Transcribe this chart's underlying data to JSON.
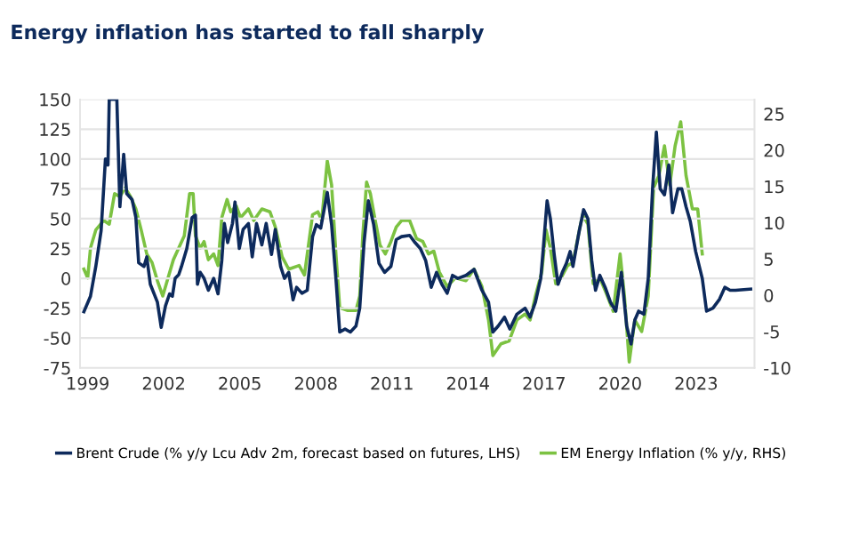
{
  "chart_data": {
    "type": "line",
    "title": "Energy inflation has started to fall sharply",
    "xlim": [
      1998.7,
      2025.3
    ],
    "xticks": [
      1999,
      2002,
      2005,
      2008,
      2011,
      2014,
      2017,
      2020,
      2023
    ],
    "ylim": [
      -75,
      150
    ],
    "yticks": [
      -75,
      -50,
      -25,
      0,
      25,
      50,
      75,
      100,
      125,
      150
    ],
    "y2lim": [
      -10,
      27
    ],
    "y2ticks": [
      -10,
      -5,
      0,
      5,
      10,
      15,
      20,
      25
    ],
    "grid": "y",
    "legend": "bottom",
    "series": [
      {
        "name": "Brent Crude (% y/y Lcu Adv 2m, forecast based on futures, LHS)",
        "color": "#0d2a5c",
        "x": [
          1998.85,
          1999.11,
          1999.32,
          1999.53,
          1999.7,
          1999.8,
          1999.85,
          2000.15,
          2000.27,
          2000.42,
          2000.54,
          2000.75,
          2000.9,
          2001.01,
          2001.22,
          2001.33,
          2001.47,
          2001.75,
          2001.9,
          2002.07,
          2002.23,
          2002.34,
          2002.45,
          2002.59,
          2002.7,
          2002.91,
          2003.12,
          2003.25,
          2003.33,
          2003.44,
          2003.59,
          2003.76,
          2003.97,
          2004.14,
          2004.29,
          2004.39,
          2004.52,
          2004.71,
          2004.81,
          2004.98,
          2005.13,
          2005.34,
          2005.49,
          2005.66,
          2005.87,
          2006.04,
          2006.25,
          2006.4,
          2006.61,
          2006.76,
          2006.93,
          2007.1,
          2007.24,
          2007.45,
          2007.66,
          2007.87,
          2008.02,
          2008.19,
          2008.45,
          2008.62,
          2008.79,
          2008.94,
          2009.15,
          2009.36,
          2009.58,
          2009.73,
          2009.9,
          2010.07,
          2010.28,
          2010.49,
          2010.71,
          2010.96,
          2011.17,
          2011.38,
          2011.7,
          2011.91,
          2012.12,
          2012.33,
          2012.55,
          2012.76,
          2012.97,
          2013.18,
          2013.39,
          2013.6,
          2013.92,
          2014.24,
          2014.55,
          2014.81,
          2014.98,
          2015.19,
          2015.44,
          2015.65,
          2015.93,
          2016.25,
          2016.45,
          2016.66,
          2016.87,
          2016.97,
          2017.12,
          2017.25,
          2017.4,
          2017.55,
          2017.72,
          2017.88,
          2018.03,
          2018.14,
          2018.39,
          2018.56,
          2018.73,
          2018.88,
          2019.03,
          2019.2,
          2019.41,
          2019.62,
          2019.83,
          2020.05,
          2020.26,
          2020.43,
          2020.58,
          2020.73,
          2020.94,
          2021.11,
          2021.28,
          2021.43,
          2021.58,
          2021.75,
          2021.92,
          2022.07,
          2022.28,
          2022.43,
          2022.6,
          2022.77,
          2022.98,
          2023.24,
          2023.41,
          2023.66,
          2023.92,
          2024.13,
          2024.34,
          2024.55,
          2025.15
        ],
        "values": [
          -28,
          -15,
          10,
          40,
          100,
          95,
          150,
          150,
          60,
          104,
          71,
          66,
          51,
          13,
          10,
          18,
          -5,
          -20,
          -41,
          -23,
          -13,
          -15,
          0,
          3,
          10,
          25,
          51,
          53,
          -5,
          5,
          0,
          -10,
          0,
          -13,
          15,
          46,
          30,
          46,
          64,
          25,
          41,
          46,
          18,
          46,
          28,
          46,
          20,
          41,
          10,
          0,
          5,
          -18,
          -7.5,
          -12.5,
          -10,
          35,
          45,
          42,
          72,
          45,
          0,
          -45,
          -42.5,
          -45,
          -40,
          -25,
          30,
          65,
          45,
          12.5,
          5,
          10,
          32.5,
          35,
          36,
          30,
          25,
          15,
          -7.5,
          5,
          -5,
          -12.5,
          2.5,
          0,
          2.5,
          7.5,
          -10,
          -20,
          -45,
          -40,
          -32.5,
          -42.5,
          -30,
          -25,
          -32.5,
          -20,
          0,
          25,
          65,
          50,
          20,
          -5,
          5,
          12.5,
          22.5,
          10,
          40,
          57.5,
          50,
          15,
          -10,
          2.5,
          -7.5,
          -20,
          -27.5,
          5,
          -40,
          -55,
          -35,
          -27.5,
          -30,
          0,
          75,
          122.5,
          75,
          70,
          95,
          55,
          75,
          75,
          60,
          47.5,
          22.5,
          0,
          -27.5,
          -25,
          -17.5,
          -7.5,
          -10,
          -10,
          -9
        ]
      },
      {
        "name": "EM Energy Inflation (% y/y, RHS)",
        "color": "#7cc242",
        "axis": "y2",
        "x": [
          1998.85,
          1999.0,
          1999.11,
          1999.32,
          1999.63,
          1999.85,
          2000.06,
          2000.27,
          2000.48,
          2000.69,
          2000.9,
          2001.11,
          2001.33,
          2001.54,
          2001.75,
          2001.96,
          2002.17,
          2002.38,
          2002.59,
          2002.81,
          2003.02,
          2003.16,
          2003.25,
          2003.44,
          2003.59,
          2003.76,
          2003.97,
          2004.14,
          2004.29,
          2004.5,
          2004.64,
          2004.86,
          2005.03,
          2005.34,
          2005.55,
          2005.87,
          2006.19,
          2006.4,
          2006.67,
          2006.93,
          2007.34,
          2007.55,
          2007.87,
          2008.08,
          2008.23,
          2008.45,
          2008.62,
          2008.79,
          2008.94,
          2009.26,
          2009.58,
          2009.73,
          2009.85,
          2010.0,
          2010.15,
          2010.32,
          2010.53,
          2010.74,
          2010.96,
          2011.17,
          2011.38,
          2011.7,
          2011.97,
          2012.22,
          2012.44,
          2012.65,
          2012.87,
          2013.18,
          2013.5,
          2013.92,
          2014.24,
          2014.55,
          2014.81,
          2014.98,
          2015.3,
          2015.62,
          2015.93,
          2016.25,
          2016.45,
          2016.66,
          2016.91,
          2017.08,
          2017.25,
          2017.46,
          2017.67,
          2017.93,
          2018.14,
          2018.35,
          2018.52,
          2018.73,
          2018.94,
          2019.2,
          2019.45,
          2019.73,
          2020.0,
          2020.17,
          2020.36,
          2020.58,
          2020.85,
          2021.11,
          2021.32,
          2021.53,
          2021.75,
          2021.96,
          2022.17,
          2022.39,
          2022.6,
          2022.85,
          2023.06,
          2023.24
        ],
        "values": [
          3.6,
          2.4,
          6.5,
          9.0,
          10.3,
          9.8,
          14.0,
          13.6,
          14.8,
          13.6,
          11.9,
          9.0,
          5.7,
          4.5,
          2.0,
          -0.1,
          2.4,
          4.9,
          6.5,
          8.2,
          14.0,
          14.0,
          8.2,
          6.5,
          7.4,
          4.9,
          5.7,
          4.1,
          10.7,
          13.2,
          11.5,
          12.3,
          10.7,
          11.9,
          10.3,
          11.9,
          11.5,
          9.4,
          5.3,
          3.6,
          4.1,
          2.8,
          11.1,
          11.5,
          10.3,
          18.5,
          15.2,
          5.7,
          -1.7,
          -2.1,
          -2.1,
          -0.1,
          8.2,
          15.6,
          14.0,
          10.7,
          6.9,
          5.7,
          7.4,
          9.4,
          10.3,
          10.3,
          7.8,
          7.4,
          5.7,
          6.1,
          3.2,
          1.2,
          2.4,
          2.0,
          3.6,
          1.2,
          -3.4,
          -8.3,
          -6.7,
          -6.3,
          -3.4,
          -2.6,
          -3.4,
          -0.1,
          3.2,
          9.0,
          6.5,
          1.6,
          2.4,
          4.1,
          4.5,
          8.2,
          11.1,
          9.8,
          1.6,
          2.4,
          0.3,
          -2.2,
          5.7,
          -0.1,
          -9.2,
          -3.4,
          -5.0,
          -0.1,
          14.8,
          16.5,
          20.6,
          15.2,
          20.6,
          23.9,
          16.5,
          11.9,
          11.9,
          5.7
        ]
      }
    ]
  }
}
